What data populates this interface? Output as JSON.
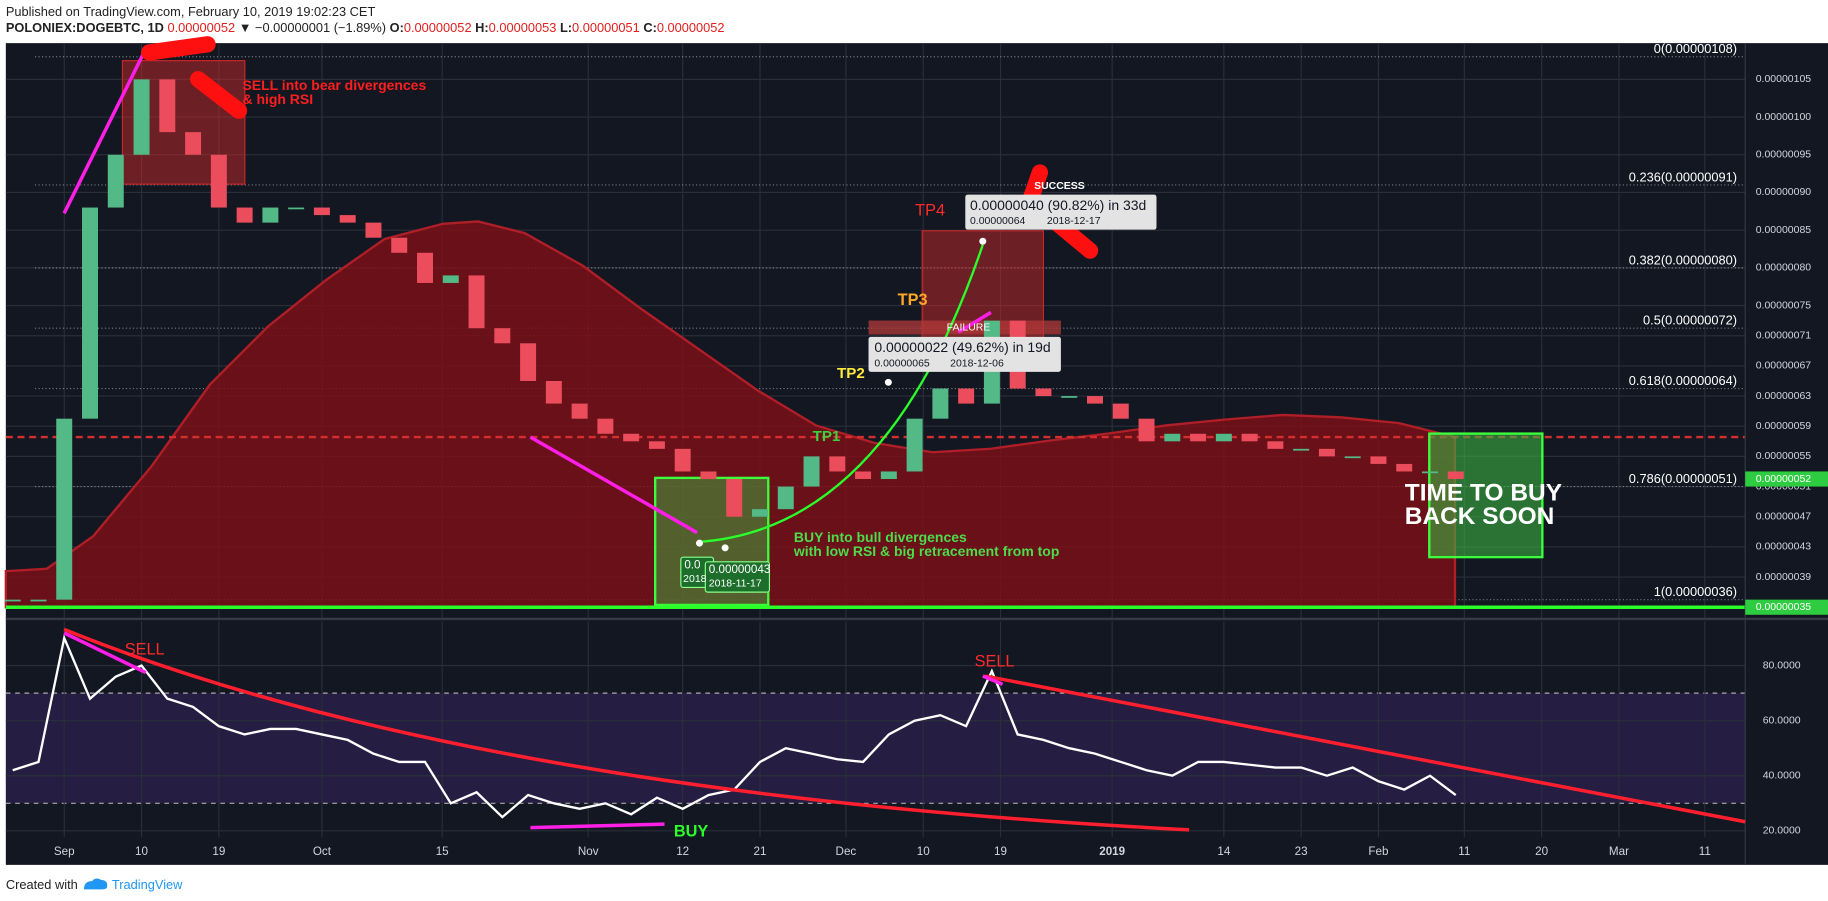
{
  "header": {
    "published": "Published on TradingView.com, February 10, 2019 19:02:23 CET",
    "symbol": "POLONIEX:DOGEBTC, 1D",
    "last": "0.00000052",
    "change": "▼ −0.00000001 (−1.89%)",
    "ohlc": [
      [
        "O:",
        "0.00000052"
      ],
      [
        "H:",
        "0.00000053"
      ],
      [
        "L:",
        "0.00000051"
      ],
      [
        "C:",
        "0.00000052"
      ]
    ]
  },
  "chart_data": [
    {
      "type": "candlestick",
      "up_color": "#53b987",
      "down_color": "#eb4d5c",
      "x": [
        -6,
        -3,
        0,
        3,
        6,
        9,
        12,
        15,
        18,
        21,
        24,
        27,
        30,
        33,
        36,
        39,
        42,
        45,
        48,
        51,
        54,
        57,
        60,
        63,
        66,
        69,
        72,
        75,
        78,
        81,
        84,
        87,
        90,
        93,
        96,
        99,
        102,
        105,
        108,
        111,
        114,
        117,
        120,
        123,
        126,
        129,
        132,
        135,
        138,
        141,
        144,
        147,
        150,
        153,
        156,
        159,
        162
      ],
      "values": [
        3.6e-07,
        3.6e-07,
        6e-07,
        8.8e-07,
        9.5e-07,
        1.05e-06,
        9.8e-07,
        9.5e-07,
        8.8e-07,
        8.6e-07,
        8.8e-07,
        8.8e-07,
        8.7e-07,
        8.6e-07,
        8.4e-07,
        8.2e-07,
        7.8e-07,
        7.9e-07,
        7.2e-07,
        7e-07,
        6.5e-07,
        6.2e-07,
        6e-07,
        5.8e-07,
        5.7e-07,
        5.6e-07,
        5.3e-07,
        5.2e-07,
        4.7e-07,
        4.8e-07,
        5.1e-07,
        5.5e-07,
        5.3e-07,
        5.2e-07,
        5.3e-07,
        6e-07,
        6.4e-07,
        6.2e-07,
        7.3e-07,
        6.4e-07,
        6.3e-07,
        6.3e-07,
        6.2e-07,
        6e-07,
        5.7e-07,
        5.8e-07,
        5.7e-07,
        5.8e-07,
        5.7e-07,
        5.6e-07,
        5.6e-07,
        5.5e-07,
        5.5e-07,
        5.4e-07,
        5.3e-07,
        5.3e-07,
        5.2e-07
      ],
      "ylim": [
        3.36e-07,
        1.0965e-06
      ],
      "yticks": [
        {
          "value": 1.05e-06,
          "label": "0.00000105"
        },
        {
          "value": 1e-06,
          "label": "0.00000100"
        },
        {
          "value": 9.5e-07,
          "label": "0.00000095"
        },
        {
          "value": 9e-07,
          "label": "0.00000090"
        },
        {
          "value": 8.5e-07,
          "label": "0.00000085"
        },
        {
          "value": 8e-07,
          "label": "0.00000080"
        },
        {
          "value": 7.5e-07,
          "label": "0.00000075"
        },
        {
          "value": 7.1e-07,
          "label": "0.00000071"
        },
        {
          "value": 6.7e-07,
          "label": "0.00000067"
        },
        {
          "value": 6.3e-07,
          "label": "0.00000063"
        },
        {
          "value": 5.9e-07,
          "label": "0.00000059"
        },
        {
          "value": 5.5e-07,
          "label": "0.00000055"
        },
        {
          "value": 5.1e-07,
          "label": "0.00000051"
        },
        {
          "value": 4.7e-07,
          "label": "0.00000047"
        },
        {
          "value": 4.3e-07,
          "label": "0.00000043"
        },
        {
          "value": 3.9e-07,
          "label": "0.00000039"
        }
      ],
      "price_labels": [
        {
          "value": 5.2e-07,
          "label": "0.00000052"
        },
        {
          "value": 3.5e-07,
          "label": "0.00000035"
        }
      ],
      "fib_levels": [
        {
          "value": 1.08e-06,
          "label": "0(0.00000108)"
        },
        {
          "value": 9.1e-07,
          "label": "0.236(0.00000091)"
        },
        {
          "value": 8e-07,
          "label": "0.382(0.00000080)"
        },
        {
          "value": 7.2e-07,
          "label": "0.5(0.00000072)"
        },
        {
          "value": 6.4e-07,
          "label": "0.618(0.00000064)"
        },
        {
          "value": 5.1e-07,
          "label": "0.786(0.00000051)"
        },
        {
          "value": 3.6e-07,
          "label": "1(0.00000036)"
        }
      ],
      "annotations": [
        "SELL into bear divergences",
        "& high RSI",
        "TP4",
        "TP3",
        "TP2",
        "TP1",
        "BUY into bull divergences",
        "with low RSI & big retracement from top",
        "TIME TO BUY",
        "BACK SOON",
        "SUCCESS",
        "FAILURE",
        "0.00000040 (90.82%) in 33d",
        "0.00000064",
        "2018-12-17",
        "0.00000022 (49.62%) in 19d",
        "0.00000065",
        "2018-12-06",
        "0.0",
        "2018",
        "0.00000043",
        "2018-11-17"
      ]
    },
    {
      "type": "line",
      "color": "#ffffff",
      "values": [
        42,
        45,
        90,
        68,
        76,
        80,
        68,
        65,
        58,
        55,
        57,
        57,
        55,
        53,
        48,
        45,
        45,
        30,
        34,
        25,
        33,
        30,
        28,
        30,
        26,
        32,
        28,
        33,
        35,
        45,
        50,
        48,
        46,
        45,
        55,
        60,
        62,
        58,
        78,
        55,
        53,
        50,
        48,
        45,
        42,
        40,
        45,
        45,
        44,
        43,
        43,
        40,
        43,
        38,
        35,
        40,
        33
      ],
      "ylim": [
        17.8,
        96.1
      ],
      "yticks": [
        {
          "value": 80,
          "label": "80.0000"
        },
        {
          "value": 60,
          "label": "60.0000"
        },
        {
          "value": 40,
          "label": "40.0000"
        },
        {
          "value": 20,
          "label": "20.0000"
        }
      ],
      "levels": [
        70,
        30
      ],
      "xlim": [
        -6.8,
        195.7
      ],
      "xticks": [
        {
          "value": 0,
          "label": "Sep"
        },
        {
          "value": 9,
          "label": "10"
        },
        {
          "value": 18,
          "label": "19"
        },
        {
          "value": 30,
          "label": "Oct"
        },
        {
          "value": 44,
          "label": "15"
        },
        {
          "value": 61,
          "label": "Nov"
        },
        {
          "value": 72,
          "label": "12"
        },
        {
          "value": 81,
          "label": "21"
        },
        {
          "value": 91,
          "label": "Dec"
        },
        {
          "value": 100,
          "label": "10"
        },
        {
          "value": 109,
          "label": "19"
        },
        {
          "value": 122,
          "label": "2019"
        },
        {
          "value": 135,
          "label": "14"
        },
        {
          "value": 144,
          "label": "23"
        },
        {
          "value": 153,
          "label": "Feb"
        },
        {
          "value": 163,
          "label": "11"
        },
        {
          "value": 172,
          "label": "20"
        },
        {
          "value": 181,
          "label": "Mar"
        },
        {
          "value": 191,
          "label": "11"
        }
      ],
      "annotations": [
        "SELL",
        "SELL",
        "BUY"
      ]
    }
  ],
  "footer": {
    "created": "Created with",
    "brand": "TradingView"
  }
}
